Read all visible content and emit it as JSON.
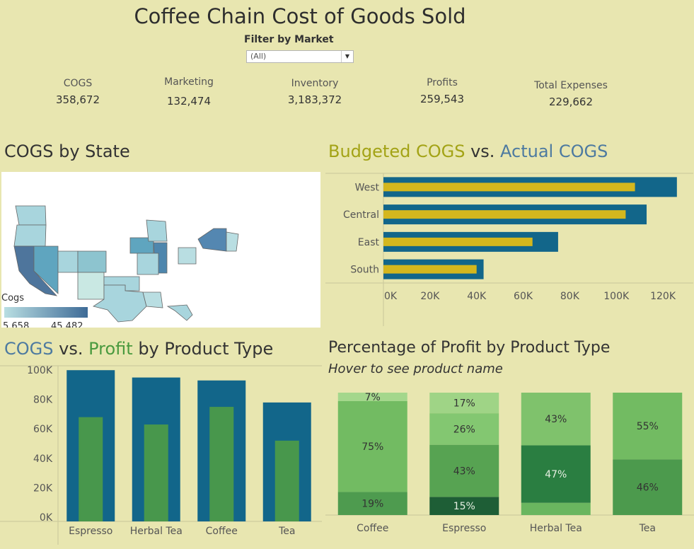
{
  "header": {
    "title": "Coffee Chain Cost of Goods Sold",
    "filter_label": "Filter by Market",
    "filter_value": "(All)"
  },
  "kpis": [
    {
      "label": "COGS",
      "value": "358,672"
    },
    {
      "label": "Marketing",
      "value": "132,474"
    },
    {
      "label": "Inventory",
      "value": "3,183,372"
    },
    {
      "label": "Profits",
      "value": "259,543"
    },
    {
      "label": "Total Expenses",
      "value": "229,662"
    }
  ],
  "map": {
    "title": "COGS by State",
    "legend_title": "Cogs",
    "legend_min": "5,658",
    "legend_max": "45,482",
    "colors": {
      "low": "#b9dee2",
      "high": "#3e6b97"
    }
  },
  "budget": {
    "title_part1": "Budgeted COGS",
    "title_part2": " vs. ",
    "title_part3": "Actual COGS",
    "color_budget": "#a3a316",
    "color_actual": "#4d7aa0"
  },
  "cogs_profit": {
    "title_part1": "COGS",
    "title_part2": " vs. ",
    "title_part3": "Profit",
    "title_part4": " by Product Type",
    "color_cogs": "#4d7aa0",
    "color_profit": "#4a9a3f"
  },
  "pct": {
    "title": "Percentage of Profit by Product Type",
    "subtitle": "Hover to see product name"
  },
  "chart_data": [
    {
      "type": "bar",
      "title": "Budgeted COGS vs. Actual COGS",
      "orientation": "horizontal",
      "categories": [
        "West",
        "Central",
        "East",
        "South"
      ],
      "series": [
        {
          "name": "Actual COGS",
          "color": "#12668a",
          "values": [
            126000,
            113000,
            75000,
            43000
          ]
        },
        {
          "name": "Budgeted COGS",
          "color": "#d4b71d",
          "values": [
            108000,
            104000,
            64000,
            40000
          ]
        }
      ],
      "xlim": [
        0,
        130000
      ],
      "ticks": [
        "0K",
        "20K",
        "40K",
        "60K",
        "80K",
        "100K",
        "120K"
      ]
    },
    {
      "type": "bar",
      "title": "COGS vs. Profit by Product Type",
      "categories": [
        "Espresso",
        "Herbal Tea",
        "Coffee",
        "Tea"
      ],
      "series": [
        {
          "name": "COGS",
          "color": "#12668a",
          "values": [
            100000,
            95000,
            93000,
            78000
          ]
        },
        {
          "name": "Profit",
          "color": "#48974c",
          "values": [
            68000,
            63000,
            75000,
            52000
          ]
        }
      ],
      "ylim": [
        -3000,
        103000
      ],
      "ticks": [
        "0K",
        "20K",
        "40K",
        "60K",
        "80K",
        "100K"
      ]
    },
    {
      "type": "bar",
      "stacked": true,
      "title": "Percentage of Profit by Product Type",
      "categories": [
        "Coffee",
        "Espresso",
        "Herbal Tea",
        "Tea"
      ],
      "stacks": [
        [
          {
            "value": 19,
            "label": "19%",
            "color": "#4e9b4f"
          },
          {
            "value": 75,
            "label": "75%",
            "color": "#72bb62"
          },
          {
            "value": 7,
            "label": "7%",
            "color": "#a4d78c"
          }
        ],
        [
          {
            "value": 15,
            "label": "15%",
            "color": "#1e5e36"
          },
          {
            "value": 43,
            "label": "43%",
            "color": "#57a352"
          },
          {
            "value": 26,
            "label": "26%",
            "color": "#83c771"
          },
          {
            "value": 17,
            "label": "17%",
            "color": "#9fd486"
          }
        ],
        [
          {
            "value": 10,
            "label": "",
            "color": "#6ab65f"
          },
          {
            "value": 47,
            "label": "47%",
            "color": "#2a7e41"
          },
          {
            "value": 43,
            "label": "43%",
            "color": "#7fc26c"
          }
        ],
        [
          {
            "value": 46,
            "label": "46%",
            "color": "#4c9a4d"
          },
          {
            "value": 55,
            "label": "55%",
            "color": "#72bb62"
          }
        ]
      ]
    }
  ]
}
